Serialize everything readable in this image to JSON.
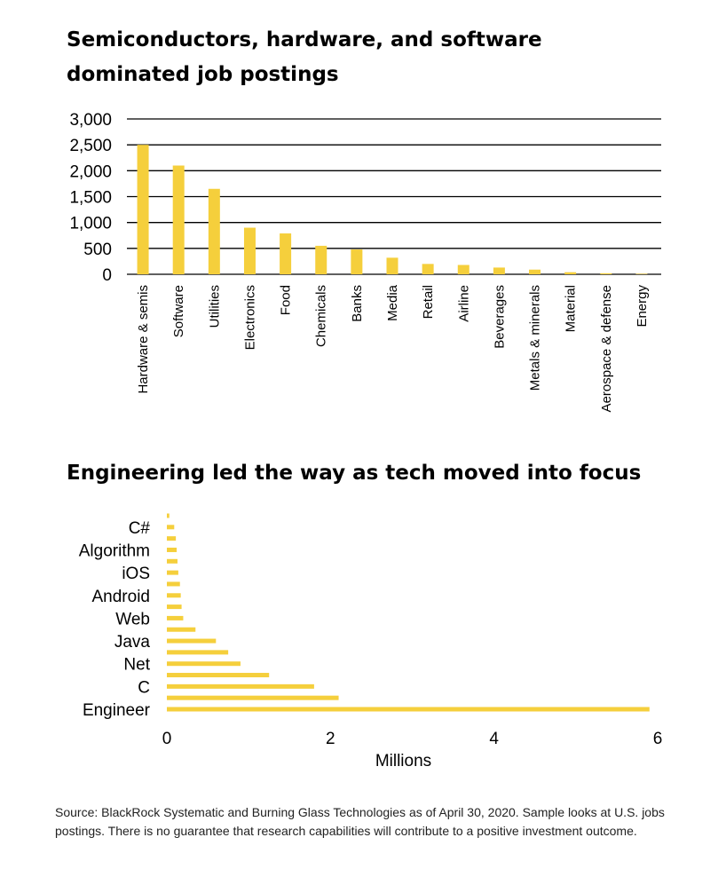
{
  "chart_data": [
    {
      "type": "bar",
      "title": "Semiconductors, hardware, and software dominated job postings",
      "categories": [
        "Hardware & semis",
        "Software",
        "Utilities",
        "Electronics",
        "Food",
        "Chemicals",
        "Banks",
        "Media",
        "Retail",
        "Airline",
        "Beverages",
        "Metals & minerals",
        "Material",
        "Aerospace & defense",
        "Energy"
      ],
      "values": [
        2500,
        2100,
        1650,
        900,
        790,
        550,
        480,
        320,
        200,
        180,
        130,
        90,
        40,
        20,
        10
      ],
      "yticks": [
        "0",
        "500",
        "1,000",
        "1,500",
        "2,000",
        "2,500",
        "3,000"
      ],
      "ylim": [
        0,
        3000
      ],
      "grid": true,
      "color": "#f5cf3c"
    },
    {
      "type": "bar",
      "orientation": "horizontal",
      "title": "Engineering led the way as tech moved into focus",
      "categories": [
        "Engineer",
        "",
        "C",
        "",
        "Net",
        "",
        "Java",
        "",
        "Web",
        "",
        "Android",
        "",
        "iOS",
        "",
        "Algorithm",
        "",
        "C#",
        ""
      ],
      "values": [
        5.9,
        2.1,
        1.8,
        1.25,
        0.9,
        0.75,
        0.6,
        0.35,
        0.2,
        0.18,
        0.17,
        0.16,
        0.14,
        0.13,
        0.12,
        0.11,
        0.09,
        0.03
      ],
      "xticks": [
        "0",
        "2",
        "4",
        "6"
      ],
      "xlim": [
        0,
        6
      ],
      "xlabel": "Millions",
      "color": "#f5cf3c"
    }
  ],
  "source": "Source: BlackRock Systematic and Burning Glass Technologies as of April 30, 2020. Sample looks at U.S. jobs postings. There is no guarantee that research capabilities will contribute to a positive investment outcome."
}
